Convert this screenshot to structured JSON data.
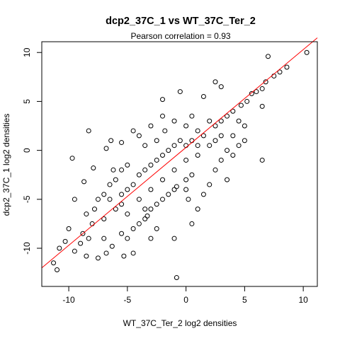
{
  "chart_data": {
    "type": "scatter",
    "title": "dcp2_37C_1 vs WT_37C_Ter_2",
    "subtitle": "Pearson correlation =  0.93",
    "xlabel": "WT_37C_Ter_2 log2 densities",
    "ylabel": "dcp2_37C_1 log2 densities",
    "xlim": [
      -12.3,
      11.2
    ],
    "ylim": [
      -13.9,
      11.1
    ],
    "xticks": [
      -10,
      -5,
      0,
      5,
      10
    ],
    "yticks": [
      -10,
      -5,
      0,
      5,
      10
    ],
    "xtick_labels": [
      "-10",
      "-5",
      "0",
      "5",
      "10"
    ],
    "ytick_labels": [
      "-10",
      "-5",
      "0",
      "5",
      "10"
    ],
    "marker": "open-circle",
    "point_color": "#000000",
    "fit_line": {
      "slope": 1.0,
      "intercept": 0.3,
      "color": "#ff0000"
    },
    "grid": false,
    "legend": "none",
    "points": [
      [
        10.3,
        10.0
      ],
      [
        7.0,
        9.6
      ],
      [
        8.6,
        8.5
      ],
      [
        8.0,
        8.0
      ],
      [
        7.5,
        7.6
      ],
      [
        6.8,
        7.0
      ],
      [
        6.5,
        6.3
      ],
      [
        6.0,
        6.0
      ],
      [
        5.6,
        5.8
      ],
      [
        5.2,
        5.0
      ],
      [
        4.7,
        4.6
      ],
      [
        3.0,
        6.5
      ],
      [
        2.5,
        7.0
      ],
      [
        1.5,
        5.5
      ],
      [
        6.5,
        4.5
      ],
      [
        5.0,
        2.5
      ],
      [
        4.0,
        1.5
      ],
      [
        -0.5,
        6.0
      ],
      [
        -2.0,
        3.5
      ],
      [
        -3.0,
        2.5
      ],
      [
        -9.7,
        -0.8
      ],
      [
        -8.7,
        -3.2
      ],
      [
        -7.9,
        -1.8
      ],
      [
        -6.4,
        1.0
      ],
      [
        -6.8,
        0.2
      ],
      [
        -5.5,
        0.8
      ],
      [
        -4.5,
        2.0
      ],
      [
        -4.0,
        1.5
      ],
      [
        -3.5,
        0.5
      ],
      [
        -2.5,
        1.0
      ],
      [
        -1.8,
        2.0
      ],
      [
        -1.0,
        3.0
      ],
      [
        0.0,
        2.5
      ],
      [
        0.5,
        3.5
      ],
      [
        1.0,
        2.0
      ],
      [
        1.5,
        1.5
      ],
      [
        2.0,
        3.0
      ],
      [
        2.5,
        2.5
      ],
      [
        3.0,
        3.0
      ],
      [
        3.5,
        3.5
      ],
      [
        4.0,
        4.0
      ],
      [
        4.5,
        3.0
      ],
      [
        -11.3,
        -11.5
      ],
      [
        -11.0,
        -12.2
      ],
      [
        -10.8,
        -10.0
      ],
      [
        -10.3,
        -9.3
      ],
      [
        -10.0,
        -8.0
      ],
      [
        -9.5,
        -10.3
      ],
      [
        -9.5,
        -5.0
      ],
      [
        -8.5,
        -10.8
      ],
      [
        -9.0,
        -9.5
      ],
      [
        -8.8,
        -8.5
      ],
      [
        -8.3,
        -9.0
      ],
      [
        -8.0,
        -7.5
      ],
      [
        -8.5,
        -6.5
      ],
      [
        -7.8,
        -6.0
      ],
      [
        -7.5,
        -5.0
      ],
      [
        -7.0,
        -4.5
      ],
      [
        -6.5,
        -3.5
      ],
      [
        -6.0,
        -3.0
      ],
      [
        -5.5,
        -2.0
      ],
      [
        -5.0,
        -1.5
      ],
      [
        -5.5,
        -4.5
      ],
      [
        -5.0,
        -4.0
      ],
      [
        -4.5,
        -3.5
      ],
      [
        -4.0,
        -2.5
      ],
      [
        -3.5,
        -2.0
      ],
      [
        -3.0,
        -1.5
      ],
      [
        -2.5,
        -1.0
      ],
      [
        -2.0,
        -0.5
      ],
      [
        -1.5,
        0.0
      ],
      [
        -1.0,
        0.5
      ],
      [
        -0.5,
        1.0
      ],
      [
        0.0,
        0.5
      ],
      [
        0.5,
        1.0
      ],
      [
        1.0,
        0.5
      ],
      [
        -6.0,
        -6.0
      ],
      [
        -5.5,
        -5.5
      ],
      [
        -5.0,
        -6.5
      ],
      [
        -6.5,
        -5.0
      ],
      [
        -7.0,
        -7.0
      ],
      [
        -4.0,
        -5.0
      ],
      [
        -3.0,
        -4.0
      ],
      [
        -2.0,
        -3.0
      ],
      [
        -1.0,
        -2.0
      ],
      [
        0.0,
        -1.0
      ],
      [
        1.0,
        -0.5
      ],
      [
        2.0,
        0.5
      ],
      [
        2.5,
        1.0
      ],
      [
        3.0,
        1.5
      ],
      [
        -5.0,
        -9.0
      ],
      [
        -5.5,
        -8.5
      ],
      [
        -4.5,
        -8.0
      ],
      [
        -4.0,
        -7.5
      ],
      [
        -3.5,
        -7.0
      ],
      [
        -3.0,
        -6.0
      ],
      [
        -2.5,
        -5.5
      ],
      [
        -2.0,
        -5.0
      ],
      [
        -1.5,
        -4.5
      ],
      [
        -1.0,
        -4.0
      ],
      [
        0.0,
        -3.0
      ],
      [
        0.5,
        -2.5
      ],
      [
        -5.3,
        -10.8
      ],
      [
        -6.3,
        -9.8
      ],
      [
        -6.8,
        -10.5
      ],
      [
        -7.5,
        -11.0
      ],
      [
        -7.0,
        -9.0
      ],
      [
        -4.5,
        -10.5
      ],
      [
        -1.0,
        -9.0
      ],
      [
        -0.8,
        -3.7
      ],
      [
        0.0,
        -4.0
      ],
      [
        0.5,
        -7.5
      ],
      [
        -2.5,
        -8.0
      ],
      [
        -3.0,
        -9.0
      ],
      [
        -3.5,
        -6.0
      ],
      [
        -3.3,
        -6.7
      ],
      [
        0.2,
        -5.0
      ],
      [
        1.0,
        -6.0
      ],
      [
        1.5,
        -4.5
      ],
      [
        2.0,
        -3.5
      ],
      [
        2.5,
        -2.0
      ],
      [
        3.0,
        -1.0
      ],
      [
        3.5,
        0.0
      ],
      [
        4.0,
        -0.5
      ],
      [
        4.5,
        0.5
      ],
      [
        5.0,
        1.0
      ],
      [
        -0.8,
        -13.0
      ],
      [
        6.5,
        -1.0
      ],
      [
        3.5,
        -3.0
      ],
      [
        -6.2,
        -2.0
      ],
      [
        -2.0,
        5.2
      ],
      [
        -8.3,
        2.0
      ]
    ]
  }
}
